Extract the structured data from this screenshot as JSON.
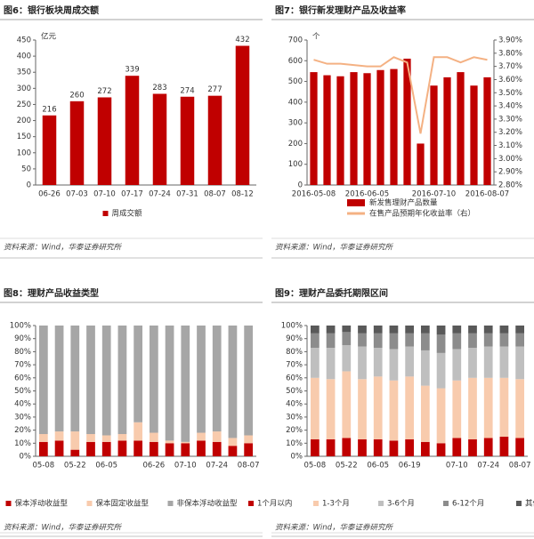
{
  "chart_data": [
    {
      "type": "bar",
      "title": "图6：银行板块周成交额",
      "y_unit": "亿元",
      "categories": [
        "06-26",
        "07-03",
        "07-10",
        "07-17",
        "07-24",
        "07-31",
        "08-07",
        "08-12"
      ],
      "series": [
        {
          "name": "周成交额",
          "color": "#c00000",
          "values": [
            216,
            260,
            272,
            339,
            283,
            274,
            277,
            432
          ]
        }
      ],
      "value_labels": true,
      "ylim": [
        0,
        450
      ],
      "yticks": [
        0,
        50,
        100,
        150,
        200,
        250,
        300,
        350,
        400,
        450
      ],
      "source": "资料来源：Wind，华泰证券研究所"
    },
    {
      "type": "combo",
      "title": "图7：银行新发理财产品及收益率",
      "y_unit": "个",
      "categories": [
        "2016-05-08",
        null,
        null,
        null,
        "2016-06-05",
        null,
        null,
        null,
        null,
        "2016-07-10",
        null,
        null,
        null,
        "2016-08-07"
      ],
      "series": [
        {
          "name": "新发售理财产品数量",
          "kind": "bar",
          "color": "#c00000",
          "values": [
            545,
            530,
            525,
            545,
            540,
            555,
            560,
            610,
            200,
            480,
            520,
            545,
            480,
            520
          ]
        },
        {
          "name": "在售产品预期年化收益率（右）",
          "kind": "line",
          "axis": "y2",
          "color": "#f4b183",
          "values": [
            3.75,
            3.72,
            3.72,
            3.71,
            3.7,
            3.7,
            3.77,
            3.73,
            3.19,
            3.77,
            3.77,
            3.73,
            3.77,
            3.75
          ]
        }
      ],
      "ylim": [
        0,
        700
      ],
      "yticks": [
        0,
        100,
        200,
        300,
        400,
        500,
        600,
        700
      ],
      "y2lim": [
        2.8,
        3.9
      ],
      "y2ticks": [
        {
          "value": 2.8,
          "label": "2.80%"
        },
        {
          "value": 2.9,
          "label": "2.90%"
        },
        {
          "value": 3.0,
          "label": "3.00%"
        },
        {
          "value": 3.1,
          "label": "3.10%"
        },
        {
          "value": 3.2,
          "label": "3.20%"
        },
        {
          "value": 3.3,
          "label": "3.30%"
        },
        {
          "value": 3.4,
          "label": "3.40%"
        },
        {
          "value": 3.5,
          "label": "3.50%"
        },
        {
          "value": 3.6,
          "label": "3.60%"
        },
        {
          "value": 3.7,
          "label": "3.70%"
        },
        {
          "value": 3.8,
          "label": "3.80%"
        },
        {
          "value": 3.9,
          "label": "3.90%"
        }
      ],
      "source": "资料来源：Wind，华泰证券研究所"
    },
    {
      "type": "stacked-bar",
      "title": "图8：理财产品收益类型",
      "categories": [
        "05-08",
        null,
        "05-22",
        null,
        "06-05",
        null,
        null,
        "06-26",
        null,
        "07-10",
        null,
        "07-24",
        null,
        "08-07"
      ],
      "series": [
        {
          "name": "保本浮动收益型",
          "color": "#c00000",
          "values": [
            11,
            12,
            5,
            11,
            11,
            12,
            12,
            11,
            10,
            10,
            12,
            11,
            8,
            10
          ]
        },
        {
          "name": "保本固定收益型",
          "color": "#f8cbad",
          "values": [
            6,
            7,
            14,
            6,
            5,
            5,
            14,
            7,
            2,
            1,
            6,
            8,
            6,
            6
          ]
        },
        {
          "name": "非保本浮动收益型",
          "color": "#a6a6a6",
          "values": [
            83,
            81,
            81,
            83,
            84,
            83,
            74,
            82,
            88,
            89,
            82,
            81,
            86,
            84
          ]
        }
      ],
      "ylim": [
        0,
        100
      ],
      "yticks": [
        {
          "value": 0,
          "label": "0%"
        },
        {
          "value": 10,
          "label": "10%"
        },
        {
          "value": 20,
          "label": "20%"
        },
        {
          "value": 30,
          "label": "30%"
        },
        {
          "value": 40,
          "label": "40%"
        },
        {
          "value": 50,
          "label": "50%"
        },
        {
          "value": 60,
          "label": "60%"
        },
        {
          "value": 70,
          "label": "70%"
        },
        {
          "value": 80,
          "label": "80%"
        },
        {
          "value": 90,
          "label": "90%"
        },
        {
          "value": 100,
          "label": "100%"
        }
      ],
      "source": "资料来源：Wind，华泰证券研究所"
    },
    {
      "type": "stacked-bar",
      "title": "图9：理财产品委托期限区间",
      "categories": [
        "05-08",
        null,
        "05-22",
        null,
        "06-05",
        null,
        "06-19",
        null,
        null,
        "07-10",
        null,
        "07-24",
        null,
        "08-07"
      ],
      "series": [
        {
          "name": "1个月以内",
          "color": "#c00000",
          "values": [
            13,
            13,
            14,
            13,
            13,
            12,
            13,
            11,
            10,
            14,
            13,
            14,
            15,
            14
          ]
        },
        {
          "name": "1-3个月",
          "color": "#f8cbad",
          "values": [
            47,
            46,
            51,
            46,
            48,
            46,
            48,
            43,
            42,
            44,
            47,
            46,
            45,
            45
          ]
        },
        {
          "name": "3-6个月",
          "color": "#bfbfbf",
          "values": [
            23,
            24,
            20,
            25,
            22,
            24,
            23,
            27,
            27,
            24,
            23,
            24,
            24,
            25
          ]
        },
        {
          "name": "6-12个月",
          "color": "#8c8c8c",
          "values": [
            11,
            11,
            10,
            10,
            11,
            12,
            10,
            13,
            14,
            12,
            11,
            10,
            10,
            10
          ]
        },
        {
          "name": "其他",
          "color": "#595959",
          "values": [
            6,
            6,
            5,
            6,
            6,
            6,
            6,
            6,
            7,
            6,
            6,
            6,
            6,
            6
          ]
        }
      ],
      "ylim": [
        0,
        100
      ],
      "yticks": [
        {
          "value": 0,
          "label": "0%"
        },
        {
          "value": 10,
          "label": "10%"
        },
        {
          "value": 20,
          "label": "20%"
        },
        {
          "value": 30,
          "label": "30%"
        },
        {
          "value": 40,
          "label": "40%"
        },
        {
          "value": 50,
          "label": "50%"
        },
        {
          "value": 60,
          "label": "60%"
        },
        {
          "value": 70,
          "label": "70%"
        },
        {
          "value": 80,
          "label": "80%"
        },
        {
          "value": 90,
          "label": "90%"
        },
        {
          "value": 100,
          "label": "100%"
        }
      ],
      "source": "资料来源：Wind，华泰证券研究所"
    }
  ]
}
